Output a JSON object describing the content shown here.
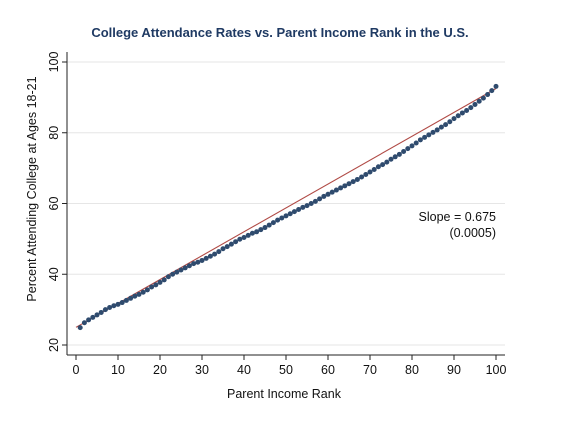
{
  "chart_data": {
    "type": "scatter",
    "title": "College Attendance Rates vs. Parent Income Rank in the U.S.",
    "xlabel": "Parent Income Rank",
    "ylabel": "Percent Attending College at Ages 18-21",
    "xlim": [
      0,
      100
    ],
    "ylim": [
      20,
      100
    ],
    "xticks": [
      0,
      10,
      20,
      30,
      40,
      50,
      60,
      70,
      80,
      90,
      100
    ],
    "yticks": [
      20,
      40,
      60,
      80,
      100
    ],
    "grid": "horizontal",
    "legend": "none",
    "series": [
      {
        "type": "scatter",
        "color": "#2f4b6e",
        "x": [
          1,
          2,
          3,
          4,
          5,
          6,
          7,
          8,
          9,
          10,
          11,
          12,
          13,
          14,
          15,
          16,
          17,
          18,
          19,
          20,
          21,
          22,
          23,
          24,
          25,
          26,
          27,
          28,
          29,
          30,
          31,
          32,
          33,
          34,
          35,
          36,
          37,
          38,
          39,
          40,
          41,
          42,
          43,
          44,
          45,
          46,
          47,
          48,
          49,
          50,
          51,
          52,
          53,
          54,
          55,
          56,
          57,
          58,
          59,
          60,
          61,
          62,
          63,
          64,
          65,
          66,
          67,
          68,
          69,
          70,
          71,
          72,
          73,
          74,
          75,
          76,
          77,
          78,
          79,
          80,
          81,
          82,
          83,
          84,
          85,
          86,
          87,
          88,
          89,
          90,
          91,
          92,
          93,
          94,
          95,
          96,
          97,
          98,
          99,
          100
        ],
        "y": [
          24.9,
          26.3,
          27.1,
          27.8,
          28.5,
          29.2,
          30.0,
          30.6,
          31.1,
          31.5,
          32.0,
          32.6,
          33.2,
          33.8,
          34.3,
          34.9,
          35.6,
          36.4,
          37.0,
          37.7,
          38.4,
          39.3,
          40.0,
          40.6,
          41.2,
          41.8,
          42.4,
          43.0,
          43.4,
          43.9,
          44.5,
          45.1,
          45.7,
          46.4,
          47.2,
          47.8,
          48.5,
          49.2,
          49.9,
          50.4,
          51.0,
          51.6,
          52.0,
          52.6,
          53.2,
          53.9,
          54.6,
          55.3,
          55.9,
          56.5,
          57.1,
          57.7,
          58.3,
          58.9,
          59.4,
          60.0,
          60.6,
          61.3,
          62.0,
          62.6,
          63.2,
          63.8,
          64.4,
          65.0,
          65.6,
          66.2,
          66.8,
          67.5,
          68.2,
          68.9,
          69.6,
          70.4,
          71.0,
          71.7,
          72.5,
          73.2,
          73.9,
          74.7,
          75.5,
          76.3,
          77.1,
          78.0,
          78.7,
          79.4,
          80.1,
          80.8,
          81.6,
          82.3,
          83.1,
          84.0,
          84.8,
          85.6,
          86.3,
          87.1,
          88.0,
          88.9,
          89.8,
          90.8,
          91.9,
          93.1
        ]
      },
      {
        "type": "line",
        "color": "#b04a45",
        "x": [
          0,
          100
        ],
        "y": [
          25.0,
          92.5
        ]
      }
    ],
    "annotations": [
      {
        "text": "Slope = 0.675",
        "x": 100,
        "y": 56
      },
      {
        "text": "(0.0005)",
        "x": 100,
        "y": 52
      }
    ]
  }
}
